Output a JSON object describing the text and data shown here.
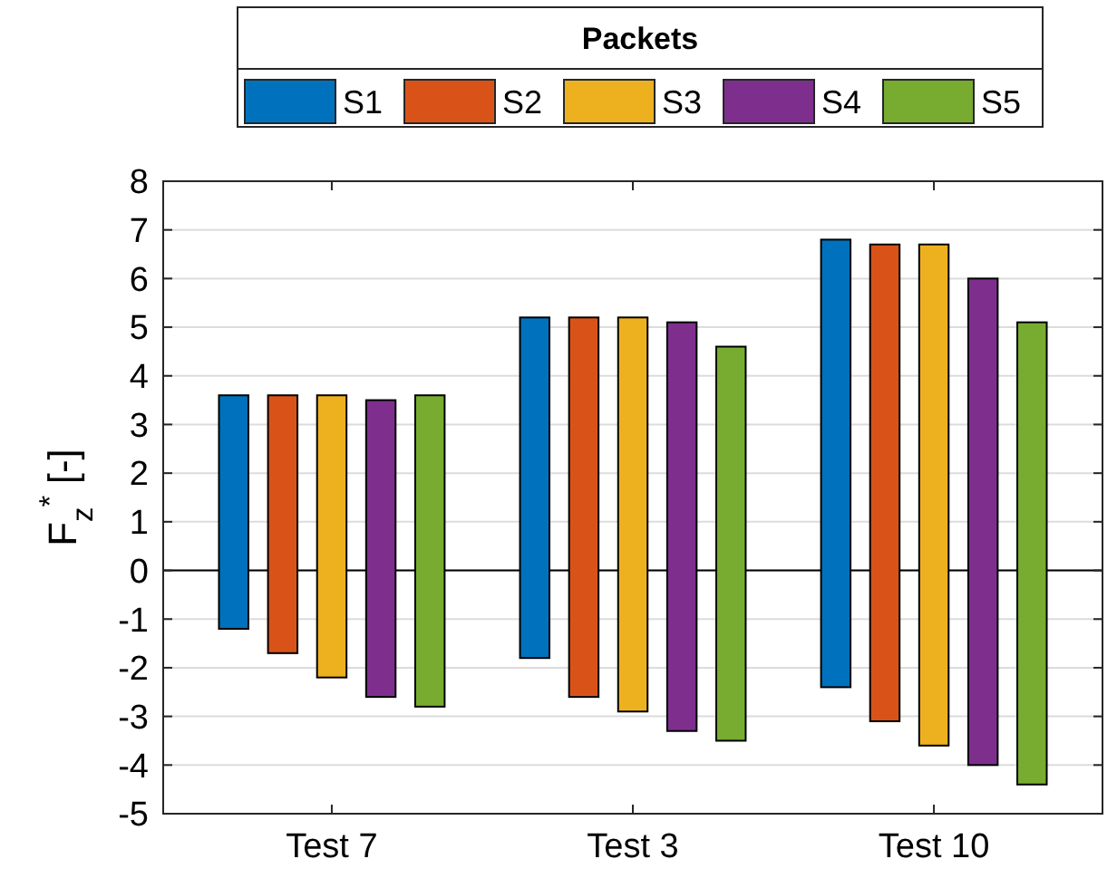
{
  "chart_data": {
    "type": "bar",
    "legend_title": "Packets",
    "ylabel": "F$_{z}$$^{*}$ [-]",
    "categories": [
      "Test 7",
      "Test 3",
      "Test 10"
    ],
    "series": [
      {
        "name": "S1",
        "color": "#0072bd",
        "base": [
          -1.2,
          -1.8,
          -2.4
        ],
        "values": [
          4.8,
          7.0,
          9.2
        ]
      },
      {
        "name": "S2",
        "color": "#d95319",
        "base": [
          -1.7,
          -2.6,
          -3.1
        ],
        "values": [
          5.3,
          7.8,
          9.8
        ]
      },
      {
        "name": "S3",
        "color": "#edb120",
        "base": [
          -2.2,
          -2.9,
          -3.6
        ],
        "values": [
          5.8,
          8.1,
          10.3
        ]
      },
      {
        "name": "S4",
        "color": "#7e2f8e",
        "base": [
          -2.6,
          -3.3,
          -4.0
        ],
        "values": [
          6.1,
          8.4,
          10.0
        ]
      },
      {
        "name": "S5",
        "color": "#77ac30",
        "base": [
          -2.8,
          -3.5,
          -4.4
        ],
        "values": [
          6.4,
          8.1,
          9.5
        ]
      }
    ],
    "ylim": [
      -5,
      8
    ],
    "yticks": [
      -5,
      -4,
      -3,
      -2,
      -1,
      0,
      1,
      2,
      3,
      4,
      5,
      6,
      7,
      8
    ],
    "grid": "y",
    "legend": "top",
    "ref_lines": [
      {
        "axis": "y",
        "value": 0,
        "color": "#000000"
      }
    ]
  }
}
